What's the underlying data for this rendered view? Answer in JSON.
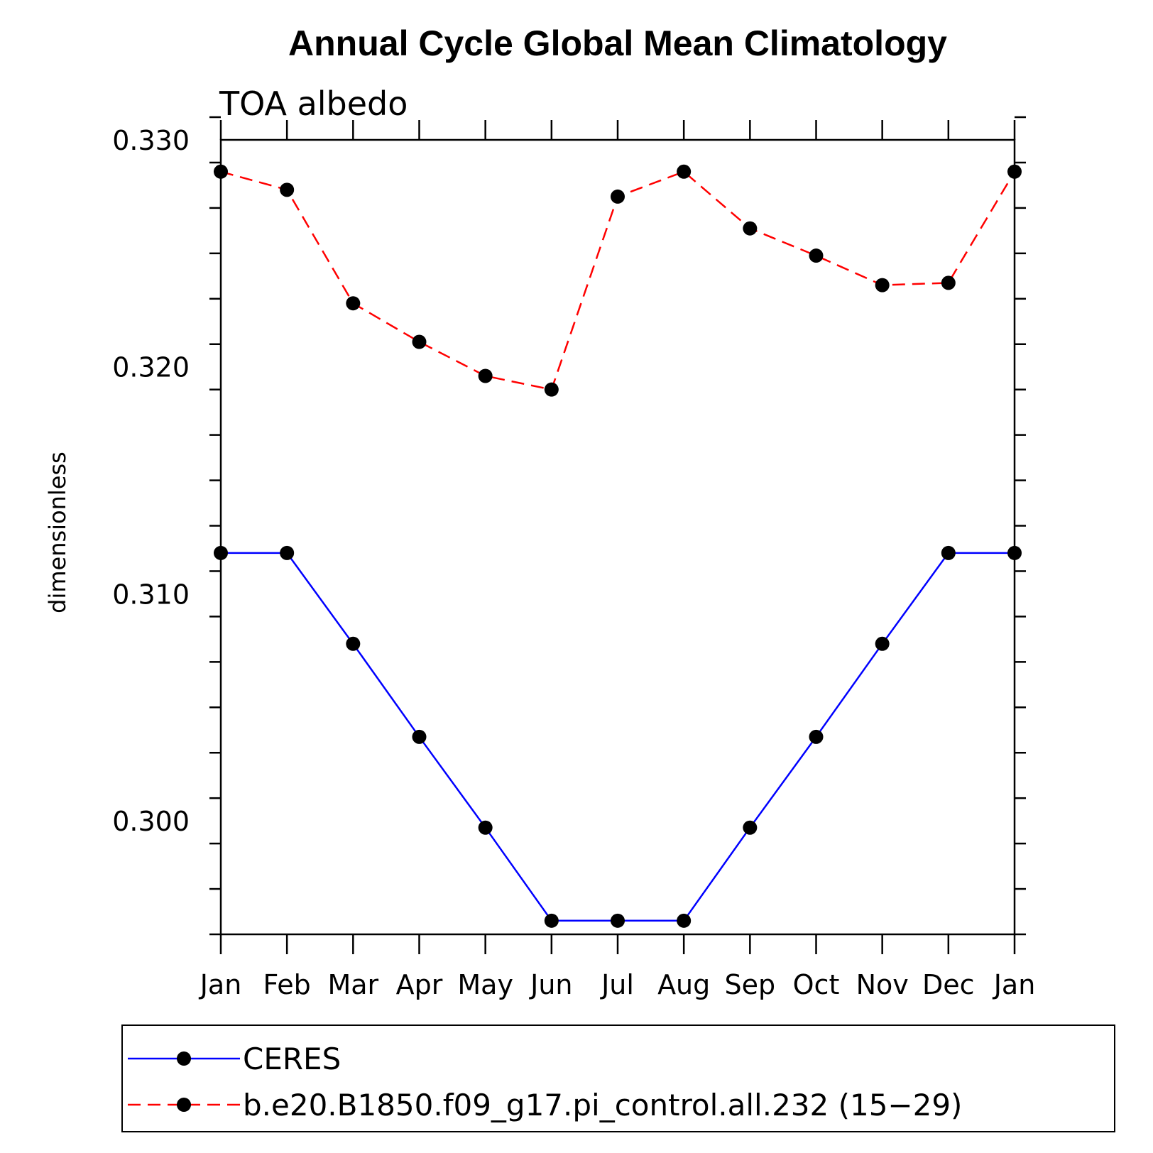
{
  "chart_data": {
    "type": "line",
    "title": "Annual Cycle Global Mean Climatology",
    "subtitle": "TOA albedo",
    "xlabel": "",
    "ylabel": "dimensionless",
    "categories": [
      "Jan",
      "Feb",
      "Mar",
      "Apr",
      "May",
      "Jun",
      "Jul",
      "Aug",
      "Sep",
      "Oct",
      "Nov",
      "Dec",
      "Jan"
    ],
    "ylim": [
      0.295,
      0.33
    ],
    "yticks": [
      0.3,
      0.31,
      0.32,
      0.33
    ],
    "ytick_labels": [
      "0.300",
      "0.310",
      "0.320",
      "0.330"
    ],
    "grid": false,
    "legend_position": "bottom",
    "series": [
      {
        "name": "CERES",
        "color": "#0000ff",
        "line_style": "solid",
        "marker": "filled-circle",
        "values": [
          0.3118,
          0.3118,
          0.3078,
          0.3037,
          0.2997,
          0.2956,
          0.2956,
          0.2956,
          0.2997,
          0.3037,
          0.3078,
          0.3118,
          0.3118
        ]
      },
      {
        "name": "b.e20.B1850.f09_g17.pi_control.all.232 (15−29)",
        "color": "#ff0000",
        "line_style": "dashed",
        "marker": "filled-circle",
        "values": [
          0.3286,
          0.3278,
          0.3228,
          0.3211,
          0.3196,
          0.319,
          0.3275,
          0.3286,
          0.3261,
          0.3249,
          0.3236,
          0.3237,
          0.3286
        ]
      }
    ]
  }
}
